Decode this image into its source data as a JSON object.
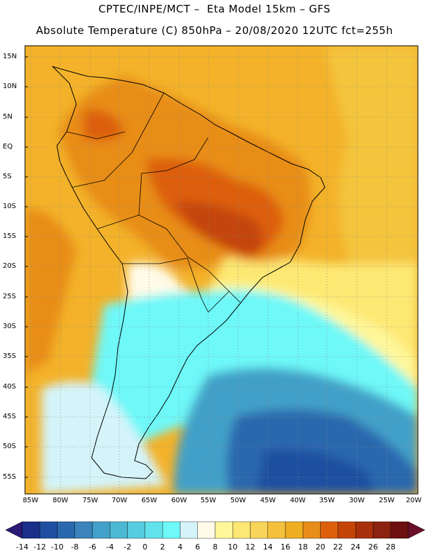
{
  "header": {
    "line1": "CPTEC/INPE/MCT –  Eta Model 15km – GFS",
    "line2": "Absolute Temperature (C) 850hPa – 20/08/2020 12UTC fct=255h"
  },
  "map": {
    "lat_labels": [
      "15N",
      "10N",
      "5N",
      "EQ",
      "5S",
      "10S",
      "15S",
      "20S",
      "25S",
      "30S",
      "35S",
      "40S",
      "45S",
      "50S",
      "55S"
    ],
    "lon_labels": [
      "85W",
      "80W",
      "75W",
      "70W",
      "65W",
      "60W",
      "55W",
      "50W",
      "45W",
      "40W",
      "35W",
      "30W",
      "25W",
      "20W"
    ]
  },
  "legend": {
    "labels": [
      "-14",
      "-12",
      "-10",
      "-8",
      "-6",
      "-4",
      "-2",
      "0",
      "2",
      "4",
      "6",
      "8",
      "10",
      "12",
      "14",
      "16",
      "18",
      "20",
      "22",
      "24",
      "26",
      "28"
    ],
    "colors": [
      "#1a2f8a",
      "#1f4fa0",
      "#2a68ae",
      "#3a83bc",
      "#43a0c8",
      "#4cb8d2",
      "#55cce0",
      "#62e2ec",
      "#6ef8f8",
      "#d4f4fa",
      "#fffbe8",
      "#fff79a",
      "#fde873",
      "#f8d45a",
      "#f3c13c",
      "#eeae22",
      "#e88d19",
      "#dd5f0c",
      "#c44408",
      "#a8300a",
      "#8c2210",
      "#6e1010"
    ],
    "underflow_color": "#2b1a76",
    "overflow_color": "#6a0f2a"
  }
}
